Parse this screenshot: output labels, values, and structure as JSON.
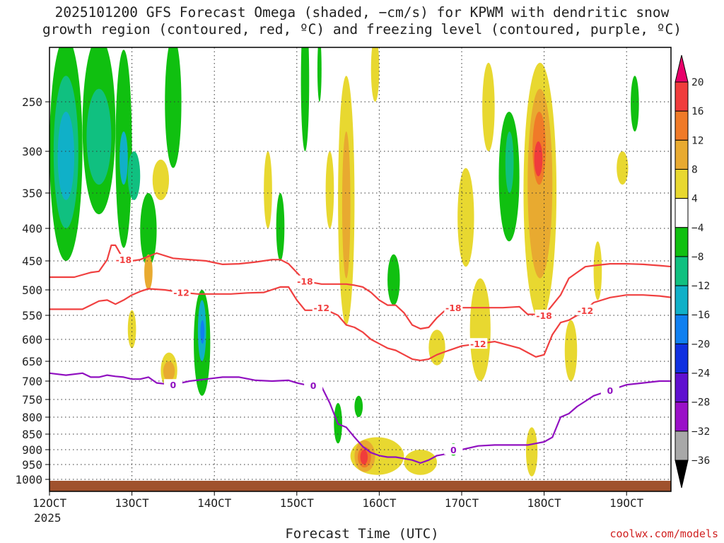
{
  "title_line1": "2025101200 GFS Forecast Omega (shaded, −cm/s) for KPWM with dendritic snow",
  "title_line2": "growth region (contoured, red, ºC) and freezing level (contoured, purple, ºC)",
  "xlabel": "Forecast Time (UTC)",
  "credit": "coolwx.com/models",
  "year_label": "2025",
  "chart_data": {
    "type": "heatmap",
    "x_ticks": [
      {
        "t": 120,
        "label": "12OCT"
      },
      {
        "t": 130,
        "label": "13OCT"
      },
      {
        "t": 140,
        "label": "14OCT"
      },
      {
        "t": 150,
        "label": "15OCT"
      },
      {
        "t": 160,
        "label": "16OCT"
      },
      {
        "t": 170,
        "label": "17OCT"
      },
      {
        "t": 180,
        "label": "18OCT"
      },
      {
        "t": 190,
        "label": "19OCT"
      }
    ],
    "xlim": [
      120,
      195.5
    ],
    "y_ticks": [
      250,
      300,
      350,
      400,
      450,
      500,
      550,
      600,
      650,
      700,
      750,
      800,
      850,
      900,
      950,
      1000
    ],
    "ylim_hpa": [
      200,
      1025
    ],
    "grid": true,
    "colorbar": {
      "labels": [
        "20",
        "16",
        "12",
        "8",
        "4",
        "−4",
        "−8",
        "−12",
        "−16",
        "−20",
        "−24",
        "−28",
        "−32",
        "−36"
      ],
      "colors": [
        "#e8006a",
        "#f03c3c",
        "#f07a28",
        "#e8aa30",
        "#e8d830",
        "#ffffff",
        "#10c010",
        "#10c080",
        "#10b0c8",
        "#1080f0",
        "#1030e0",
        "#6010d0",
        "#9a10c8",
        "#a8a8a8",
        "#000000"
      ]
    },
    "contour_colors": {
      "dgz": "#f04040",
      "freezing": "#9010c0",
      "ground": "#a0522d"
    },
    "isotherm_m18": {
      "level": "-18",
      "x": [
        120,
        123,
        125,
        126,
        127,
        127.5,
        128,
        129,
        130,
        131,
        133,
        135,
        137,
        139,
        141,
        143,
        145,
        147,
        148,
        149,
        150,
        151,
        153,
        155,
        156,
        157,
        158,
        159,
        160,
        161,
        162,
        163,
        164,
        165,
        166,
        167,
        168,
        169,
        170,
        172,
        175,
        177,
        178,
        179,
        180,
        181,
        182,
        183,
        184,
        185,
        186,
        188,
        190,
        192,
        194,
        195.5
      ],
      "y": [
        478,
        478,
        470,
        468,
        448,
        426,
        426,
        448,
        450,
        448,
        438,
        446,
        448,
        450,
        456,
        455,
        452,
        448,
        448,
        455,
        470,
        485,
        490,
        490,
        490,
        492,
        495,
        505,
        520,
        530,
        530,
        545,
        570,
        578,
        575,
        555,
        540,
        535,
        535,
        535,
        535,
        533,
        548,
        548,
        550,
        530,
        510,
        480,
        470,
        460,
        458,
        455,
        455,
        456,
        458,
        460
      ]
    },
    "isotherm_m12": {
      "level": "-12",
      "x": [
        120,
        122,
        124,
        125,
        126,
        127,
        128,
        129,
        130,
        131,
        132,
        134,
        136,
        138,
        140,
        142,
        144,
        146,
        148,
        149,
        150,
        151,
        152,
        153,
        155,
        156,
        157,
        158,
        159,
        160,
        161,
        162,
        163,
        164,
        165,
        166,
        167,
        168,
        170,
        172,
        174,
        176,
        177,
        178,
        179,
        180,
        181,
        182,
        183,
        184,
        185,
        186,
        188,
        190,
        192,
        194,
        195.5
      ],
      "y": [
        538,
        538,
        538,
        530,
        522,
        520,
        528,
        520,
        510,
        503,
        498,
        500,
        505,
        508,
        508,
        508,
        506,
        505,
        495,
        495,
        520,
        540,
        540,
        535,
        550,
        570,
        575,
        585,
        600,
        610,
        620,
        625,
        635,
        645,
        648,
        645,
        635,
        628,
        615,
        610,
        605,
        615,
        620,
        630,
        640,
        635,
        590,
        565,
        560,
        550,
        540,
        525,
        515,
        510,
        510,
        512,
        515
      ]
    },
    "isotherm_0": {
      "level": "0",
      "x": [
        120,
        122,
        124,
        125,
        126,
        127,
        128,
        129,
        130,
        131,
        132,
        133,
        135,
        137,
        139,
        141,
        143,
        145,
        147,
        149,
        150,
        151,
        152,
        153,
        154,
        155,
        156,
        157,
        158,
        159,
        160,
        161,
        162,
        163,
        164,
        165,
        166,
        167,
        168,
        169,
        170,
        172,
        174,
        176,
        178,
        179,
        180,
        181,
        182,
        183,
        184,
        185,
        186,
        188,
        190,
        192,
        194,
        195.5
      ],
      "y": [
        680,
        685,
        680,
        690,
        690,
        685,
        688,
        690,
        695,
        695,
        690,
        705,
        710,
        700,
        695,
        690,
        690,
        698,
        700,
        698,
        705,
        710,
        712,
        715,
        760,
        820,
        830,
        860,
        890,
        910,
        920,
        925,
        925,
        930,
        935,
        945,
        935,
        920,
        915,
        900,
        900,
        888,
        885,
        885,
        885,
        880,
        875,
        860,
        800,
        790,
        770,
        755,
        740,
        725,
        710,
        705,
        700,
        700
      ]
    },
    "omega_regions_note": "shaded omega values in -cm/s by (forecast hour, hPa)",
    "omega_regions": [
      {
        "x": [
          120,
          124
        ],
        "p": [
          200,
          450
        ],
        "v": -8
      },
      {
        "x": [
          120.5,
          123.5
        ],
        "p": [
          230,
          400
        ],
        "v": -12
      },
      {
        "x": [
          121,
          123
        ],
        "p": [
          260,
          360
        ],
        "v": -16
      },
      {
        "x": [
          124,
          128
        ],
        "p": [
          200,
          380
        ],
        "v": -8
      },
      {
        "x": [
          124.5,
          127.5
        ],
        "p": [
          240,
          340
        ],
        "v": -12
      },
      {
        "x": [
          128,
          130
        ],
        "p": [
          210,
          430
        ],
        "v": -8
      },
      {
        "x": [
          128.5,
          129.5
        ],
        "p": [
          280,
          340
        ],
        "v": -16
      },
      {
        "x": [
          129.5,
          131
        ],
        "p": [
          300,
          360
        ],
        "v": -12
      },
      {
        "x": [
          131,
          133
        ],
        "p": [
          350,
          460
        ],
        "v": -8
      },
      {
        "x": [
          132.5,
          134.5
        ],
        "p": [
          310,
          360
        ],
        "v": 4
      },
      {
        "x": [
          134,
          136
        ],
        "p": [
          200,
          320
        ],
        "v": -8
      },
      {
        "x": [
          131.5,
          132.5
        ],
        "p": [
          440,
          500
        ],
        "v": 8
      },
      {
        "x": [
          137.5,
          139.5
        ],
        "p": [
          500,
          740
        ],
        "v": -8
      },
      {
        "x": [
          138,
          139
        ],
        "p": [
          520,
          650
        ],
        "v": -16
      },
      {
        "x": [
          138.3,
          138.8
        ],
        "p": [
          560,
          610
        ],
        "v": -20
      },
      {
        "x": [
          133.5,
          135.5
        ],
        "p": [
          630,
          720
        ],
        "v": 4
      },
      {
        "x": [
          133.8,
          135.2
        ],
        "p": [
          650,
          700
        ],
        "v": 8
      },
      {
        "x": [
          129.5,
          130.5
        ],
        "p": [
          540,
          620
        ],
        "v": 4
      },
      {
        "x": [
          155,
          157
        ],
        "p": [
          230,
          570
        ],
        "v": 4
      },
      {
        "x": [
          155.5,
          156.5
        ],
        "p": [
          280,
          480
        ],
        "v": 8
      },
      {
        "x": [
          153.5,
          154.5
        ],
        "p": [
          300,
          400
        ],
        "v": 4
      },
      {
        "x": [
          150.5,
          151.5
        ],
        "p": [
          180,
          300
        ],
        "v": -8
      },
      {
        "x": [
          152.5,
          153
        ],
        "p": [
          200,
          250
        ],
        "v": -8
      },
      {
        "x": [
          159,
          160
        ],
        "p": [
          200,
          250
        ],
        "v": 4
      },
      {
        "x": [
          146,
          147
        ],
        "p": [
          300,
          400
        ],
        "v": 4
      },
      {
        "x": [
          147.5,
          148.5
        ],
        "p": [
          350,
          450
        ],
        "v": -8
      },
      {
        "x": [
          161,
          162.5
        ],
        "p": [
          440,
          530
        ],
        "v": -8
      },
      {
        "x": [
          154.5,
          155.5
        ],
        "p": [
          760,
          880
        ],
        "v": -8
      },
      {
        "x": [
          157,
          158
        ],
        "p": [
          740,
          800
        ],
        "v": -8
      },
      {
        "x": [
          156.5,
          163
        ],
        "p": [
          860,
          985
        ],
        "v": 4
      },
      {
        "x": [
          157,
          159.5
        ],
        "p": [
          870,
          975
        ],
        "v": 8
      },
      {
        "x": [
          157.4,
          159
        ],
        "p": [
          890,
          960
        ],
        "v": 12
      },
      {
        "x": [
          157.7,
          158.6
        ],
        "p": [
          900,
          950
        ],
        "v": 16
      },
      {
        "x": [
          163,
          167
        ],
        "p": [
          900,
          985
        ],
        "v": 4
      },
      {
        "x": [
          168.5,
          169.5
        ],
        "p": [
          880,
          920
        ],
        "v": -8
      },
      {
        "x": [
          166,
          168
        ],
        "p": [
          580,
          660
        ],
        "v": 4
      },
      {
        "x": [
          169.5,
          171.5
        ],
        "p": [
          320,
          460
        ],
        "v": 4
      },
      {
        "x": [
          171,
          173.5
        ],
        "p": [
          480,
          700
        ],
        "v": 4
      },
      {
        "x": [
          172.5,
          174
        ],
        "p": [
          220,
          300
        ],
        "v": 4
      },
      {
        "x": [
          174.5,
          177
        ],
        "p": [
          260,
          420
        ],
        "v": -8
      },
      {
        "x": [
          175.3,
          176.3
        ],
        "p": [
          280,
          350
        ],
        "v": -12
      },
      {
        "x": [
          177.5,
          181.5
        ],
        "p": [
          220,
          560
        ],
        "v": 4
      },
      {
        "x": [
          178,
          181
        ],
        "p": [
          240,
          480
        ],
        "v": 8
      },
      {
        "x": [
          178.6,
          180.2
        ],
        "p": [
          260,
          340
        ],
        "v": 12
      },
      {
        "x": [
          178.8,
          179.8
        ],
        "p": [
          290,
          330
        ],
        "v": 16
      },
      {
        "x": [
          177.8,
          179.2
        ],
        "p": [
          830,
          990
        ],
        "v": 4
      },
      {
        "x": [
          182.5,
          184
        ],
        "p": [
          560,
          700
        ],
        "v": 4
      },
      {
        "x": [
          186,
          187
        ],
        "p": [
          420,
          520
        ],
        "v": 4
      },
      {
        "x": [
          188.8,
          190.2
        ],
        "p": [
          300,
          340
        ],
        "v": 4
      },
      {
        "x": [
          190.5,
          191.5
        ],
        "p": [
          230,
          280
        ],
        "v": -8
      }
    ]
  }
}
